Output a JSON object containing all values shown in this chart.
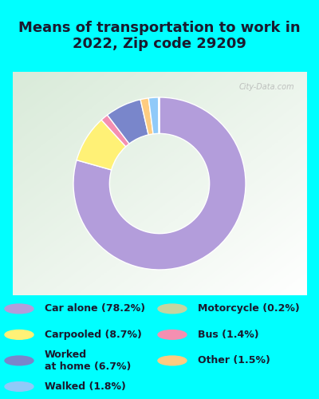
{
  "title": "Means of transportation to work in\n2022, Zip code 29209",
  "title_fontsize": 13,
  "title_color": "#1a1a2e",
  "background_color": "#00FFFF",
  "chart_bg": "#e8f0e0",
  "slices": [
    {
      "label": "Car alone (78.2%)",
      "value": 78.2,
      "color": "#b39ddb"
    },
    {
      "label": "Carpooled (8.7%)",
      "value": 8.7,
      "color": "#fff176"
    },
    {
      "label": "Bus (1.4%)",
      "value": 1.4,
      "color": "#f48fb1"
    },
    {
      "label": "Worked\nat home (6.7%)",
      "value": 6.7,
      "color": "#7986cb"
    },
    {
      "label": "Other (1.5%)",
      "value": 1.5,
      "color": "#ffcc80"
    },
    {
      "label": "Walked (1.8%)",
      "value": 1.8,
      "color": "#90caf9"
    },
    {
      "label": "Motorcycle (0.2%)",
      "value": 0.2,
      "color": "#c5d5a0"
    }
  ],
  "legend_entries": [
    {
      "label": "Car alone (78.2%)",
      "color": "#b39ddb"
    },
    {
      "label": "Motorcycle (0.2%)",
      "color": "#c5d5a0"
    },
    {
      "label": "Carpooled (8.7%)",
      "color": "#fff176"
    },
    {
      "label": "Bus (1.4%)",
      "color": "#f48fb1"
    },
    {
      "label": "Worked\nat home (6.7%)",
      "color": "#7986cb"
    },
    {
      "label": "Other (1.5%)",
      "color": "#ffcc80"
    },
    {
      "label": "Walked (1.8%)",
      "color": "#90caf9"
    }
  ],
  "legend_fontsize": 9,
  "legend_text_color": "#1a1a2e",
  "watermark": "City-Data.com"
}
